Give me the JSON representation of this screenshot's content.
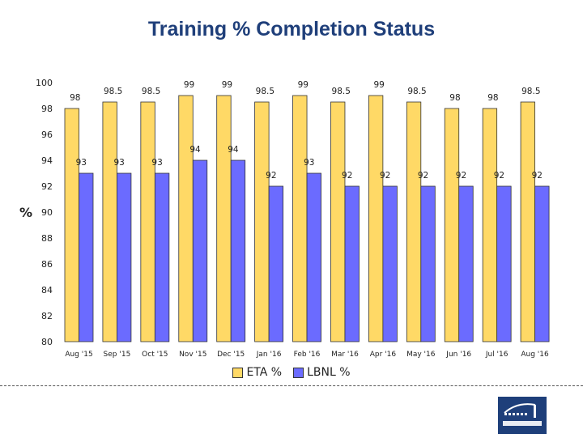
{
  "colors": {
    "eta": "#ffd966",
    "lbnl": "#6b6bff",
    "bar_stroke": "#333333"
  },
  "legend_position": "bottom",
  "logo_icon": "berkeley-lab-logo",
  "chart_data": {
    "type": "bar",
    "title": "Training % Completion Status",
    "xlabel": "",
    "ylabel": "%",
    "ylim": [
      80,
      100
    ],
    "yticks": [
      80,
      82,
      84,
      86,
      88,
      90,
      92,
      94,
      96,
      98,
      100
    ],
    "grid": false,
    "categories": [
      "Aug '15",
      "Sep '15",
      "Oct '15",
      "Nov '15",
      "Dec '15",
      "Jan '16",
      "Feb '16",
      "Mar '16",
      "Apr '16",
      "May '16",
      "Jun '16",
      "Jul '16",
      "Aug '16"
    ],
    "series": [
      {
        "name": "ETA %",
        "values": [
          98,
          98.5,
          98.5,
          99,
          99,
          98.5,
          99,
          98.5,
          99,
          98.5,
          98,
          98,
          98.5
        ]
      },
      {
        "name": "LBNL %",
        "values": [
          93,
          93,
          93,
          94,
          94,
          92,
          93,
          92,
          92,
          92,
          92,
          92,
          92
        ]
      }
    ]
  }
}
